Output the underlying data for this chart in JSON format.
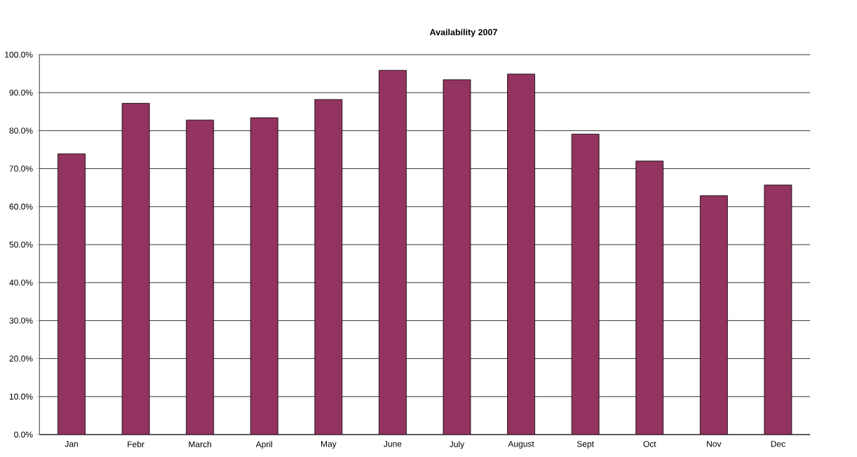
{
  "chart_data": {
    "type": "bar",
    "title": "Availability 2007",
    "categories": [
      "Jan",
      "Febr",
      "March",
      "April",
      "May",
      "June",
      "July",
      "August",
      "Sept",
      "Oct",
      "Nov",
      "Dec"
    ],
    "values": [
      73.9,
      87.2,
      82.8,
      83.4,
      88.2,
      95.9,
      93.4,
      94.9,
      79.1,
      72.0,
      62.9,
      65.7
    ],
    "color": "#93335f",
    "ylim": [
      0,
      100
    ],
    "yticks": [
      {
        "value": 0,
        "label": "0.0%"
      },
      {
        "value": 10,
        "label": "10.0%"
      },
      {
        "value": 20,
        "label": "20.0%"
      },
      {
        "value": 30,
        "label": "30.0%"
      },
      {
        "value": 40,
        "label": "40.0%"
      },
      {
        "value": 50,
        "label": "50.0%"
      },
      {
        "value": 60,
        "label": "60.0%"
      },
      {
        "value": 70,
        "label": "70.0%"
      },
      {
        "value": 80,
        "label": "80.0%"
      },
      {
        "value": 90,
        "label": "90.0%"
      },
      {
        "value": 100,
        "label": "100.0%"
      }
    ],
    "grid": "y"
  }
}
